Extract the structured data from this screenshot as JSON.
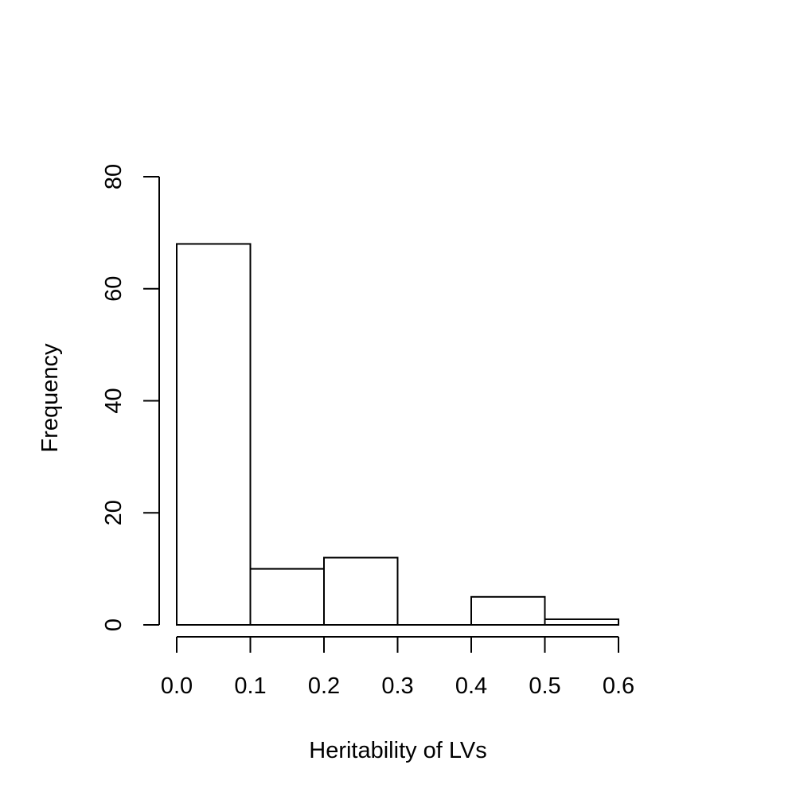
{
  "chart_data": {
    "type": "bar",
    "subtype": "histogram",
    "title": "",
    "xlabel": "Heritability of LVs",
    "ylabel": "Frequency",
    "bins": [
      {
        "start": 0.0,
        "end": 0.1,
        "count": 68
      },
      {
        "start": 0.1,
        "end": 0.2,
        "count": 10
      },
      {
        "start": 0.2,
        "end": 0.3,
        "count": 12
      },
      {
        "start": 0.3,
        "end": 0.4,
        "count": 0
      },
      {
        "start": 0.4,
        "end": 0.5,
        "count": 5
      },
      {
        "start": 0.5,
        "end": 0.6,
        "count": 1
      }
    ],
    "xlim": [
      0.0,
      0.6
    ],
    "ylim": [
      0,
      80
    ],
    "x_ticks": [
      "0.0",
      "0.1",
      "0.2",
      "0.3",
      "0.4",
      "0.5",
      "0.6"
    ],
    "y_ticks": [
      "0",
      "20",
      "40",
      "60",
      "80"
    ],
    "grid": false,
    "legend": "none",
    "bar_fill": "#ffffff",
    "bar_stroke": "#000000"
  }
}
